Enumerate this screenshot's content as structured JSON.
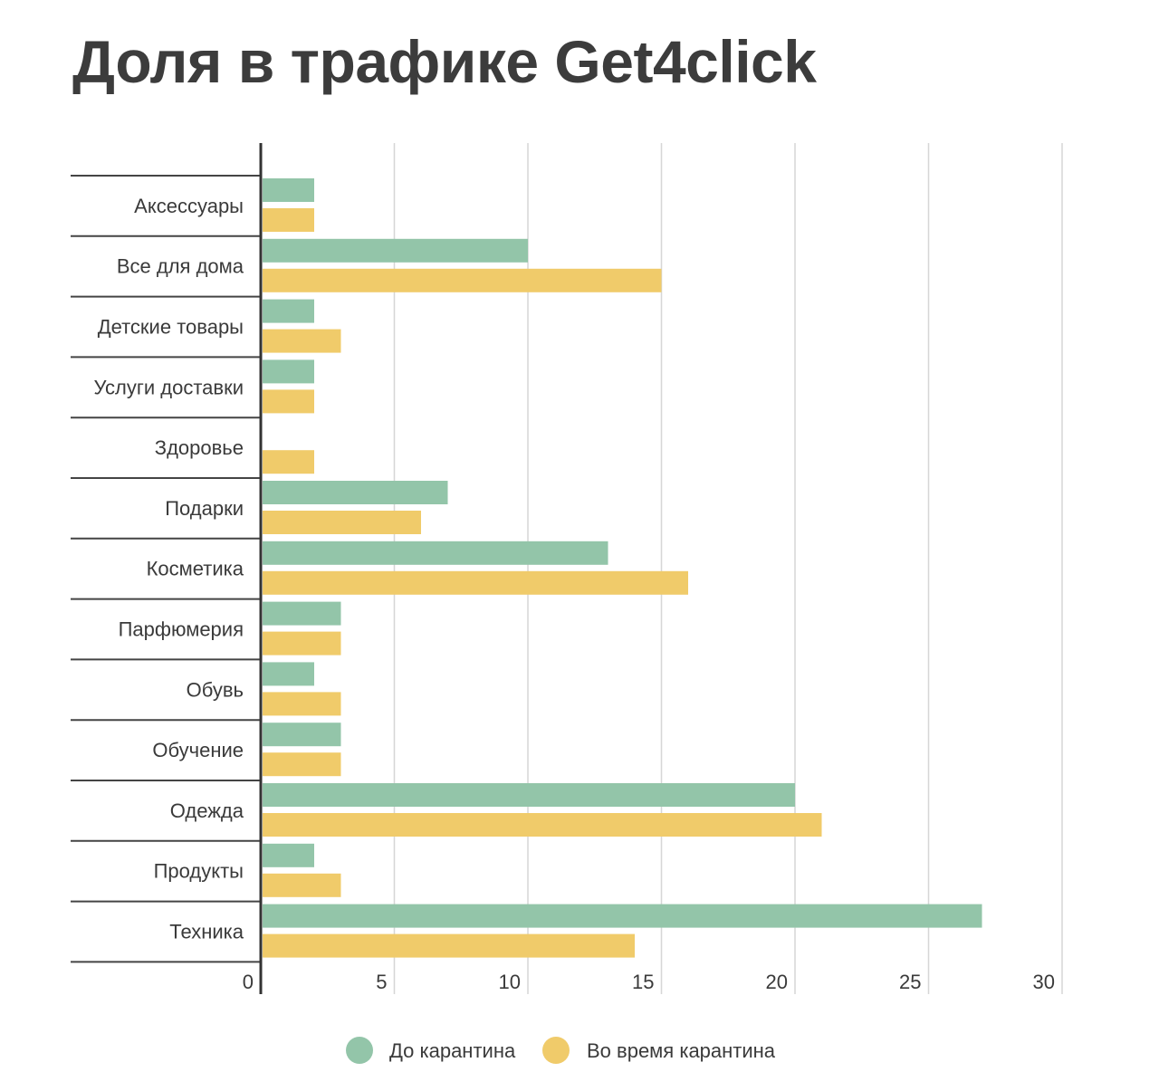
{
  "chart_data": {
    "type": "bar",
    "orientation": "horizontal",
    "title": "Доля в трафике Get4click",
    "categories": [
      "Аксессуары",
      "Все для дома",
      "Детские товары",
      "Услуги доставки",
      "Здоровье",
      "Подарки",
      "Косметика",
      "Парфюмерия",
      "Обувь",
      "Обучение",
      "Одежда",
      "Продукты",
      "Техника"
    ],
    "series": [
      {
        "name": "До карантина",
        "color": "#93c5a9",
        "values": [
          2,
          10,
          2,
          2,
          0,
          7,
          13,
          3,
          2,
          3,
          20,
          2,
          27
        ]
      },
      {
        "name": "Во время карантина",
        "color": "#f0cb6a",
        "values": [
          2,
          15,
          3,
          2,
          2,
          6,
          16,
          3,
          3,
          3,
          21,
          3,
          14
        ]
      }
    ],
    "xlim": [
      0,
      30
    ],
    "xticks": [
      0,
      5,
      10,
      15,
      20,
      25,
      30
    ],
    "grid": true,
    "legend_position": "bottom"
  }
}
